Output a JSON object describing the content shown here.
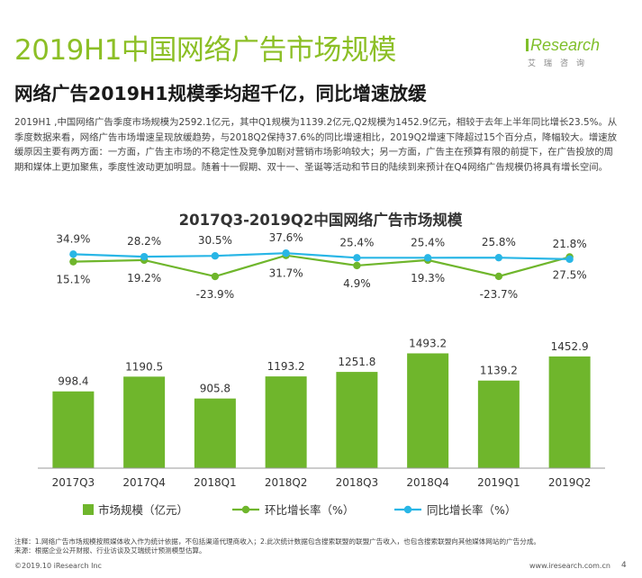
{
  "header": {
    "title": "2019H1中国网络广告市场规模",
    "subtitle": "网络广告2019H1规模季均超千亿，同比增速放缓",
    "paragraph": "2019H1 ,中国网络广告季度市场规模为2592.1亿元，其中Q1规模为1139.2亿元,Q2规模为1452.9亿元，相较于去年上半年同比增长23.5%。从季度数据来看，网络广告市场增速呈现放缓趋势，与2018Q2保持37.6%的同比增速相比，2019Q2增速下降超过15个百分点，降幅较大。增速放缓原因主要有两方面：一方面，广告主市场的不稳定性及竞争加剧对营销市场影响较大；另一方面，广告主在预算有限的前提下，在广告投放的周期和媒体上更加聚焦，季度性波动更加明显。随着十一假期、双十一、圣诞等活动和节日的陆续到来预计在Q4网络广告规模仍将具有增长空间。"
  },
  "logo": {
    "brand": "Research",
    "cn": "艾瑞咨询",
    "color": "#7fbf2a"
  },
  "chart_data": {
    "type": "bar",
    "title": "2017Q3-2019Q2中国网络广告市场规模",
    "categories": [
      "2017Q3",
      "2017Q4",
      "2018Q1",
      "2018Q2",
      "2018Q3",
      "2018Q4",
      "2019Q1",
      "2019Q2"
    ],
    "series": [
      {
        "name": "市场规模（亿元）",
        "type": "bar",
        "color": "#6fb62c",
        "values": [
          998.4,
          1190.5,
          905.8,
          1193.2,
          1251.8,
          1493.2,
          1139.2,
          1452.9
        ],
        "labels": [
          "998.4",
          "1190.5",
          "905.8",
          "1193.2",
          "1251.8",
          "1493.2",
          "1139.2",
          "1452.9"
        ]
      },
      {
        "name": "环比增长率（%）",
        "type": "line",
        "color": "#6fb62c",
        "values": [
          15.1,
          19.2,
          -23.9,
          31.7,
          4.9,
          19.3,
          -23.7,
          27.5
        ],
        "labels": [
          "15.1%",
          "19.2%",
          "-23.9%",
          "31.7%",
          "4.9%",
          "19.3%",
          "-23.7%",
          "27.5%"
        ]
      },
      {
        "name": "同比增长率（%）",
        "type": "line",
        "color": "#29b6e6",
        "values": [
          34.9,
          28.2,
          30.5,
          37.6,
          25.4,
          25.4,
          25.8,
          21.8
        ],
        "labels": [
          "34.9%",
          "28.2%",
          "30.5%",
          "37.6%",
          "25.4%",
          "25.4%",
          "25.8%",
          "21.8%"
        ]
      }
    ],
    "legend_position": "bottom",
    "grid": false
  },
  "footer": {
    "note_line1": "注释：1.网络广告市场规模按照媒体收入作为统计依据，不包括渠道代理商收入；2.此次统计数据包含搜索联盟的联盟广告收入，也包含搜索联盟向其他媒体网站的广告分成。",
    "note_line2": "来源：根据企业公开财报、行业访谈及艾瑞统计预测模型估算。",
    "copyright": "©2019.10 iResearch Inc",
    "website": "www.iresearch.com.cn",
    "page": "4"
  }
}
